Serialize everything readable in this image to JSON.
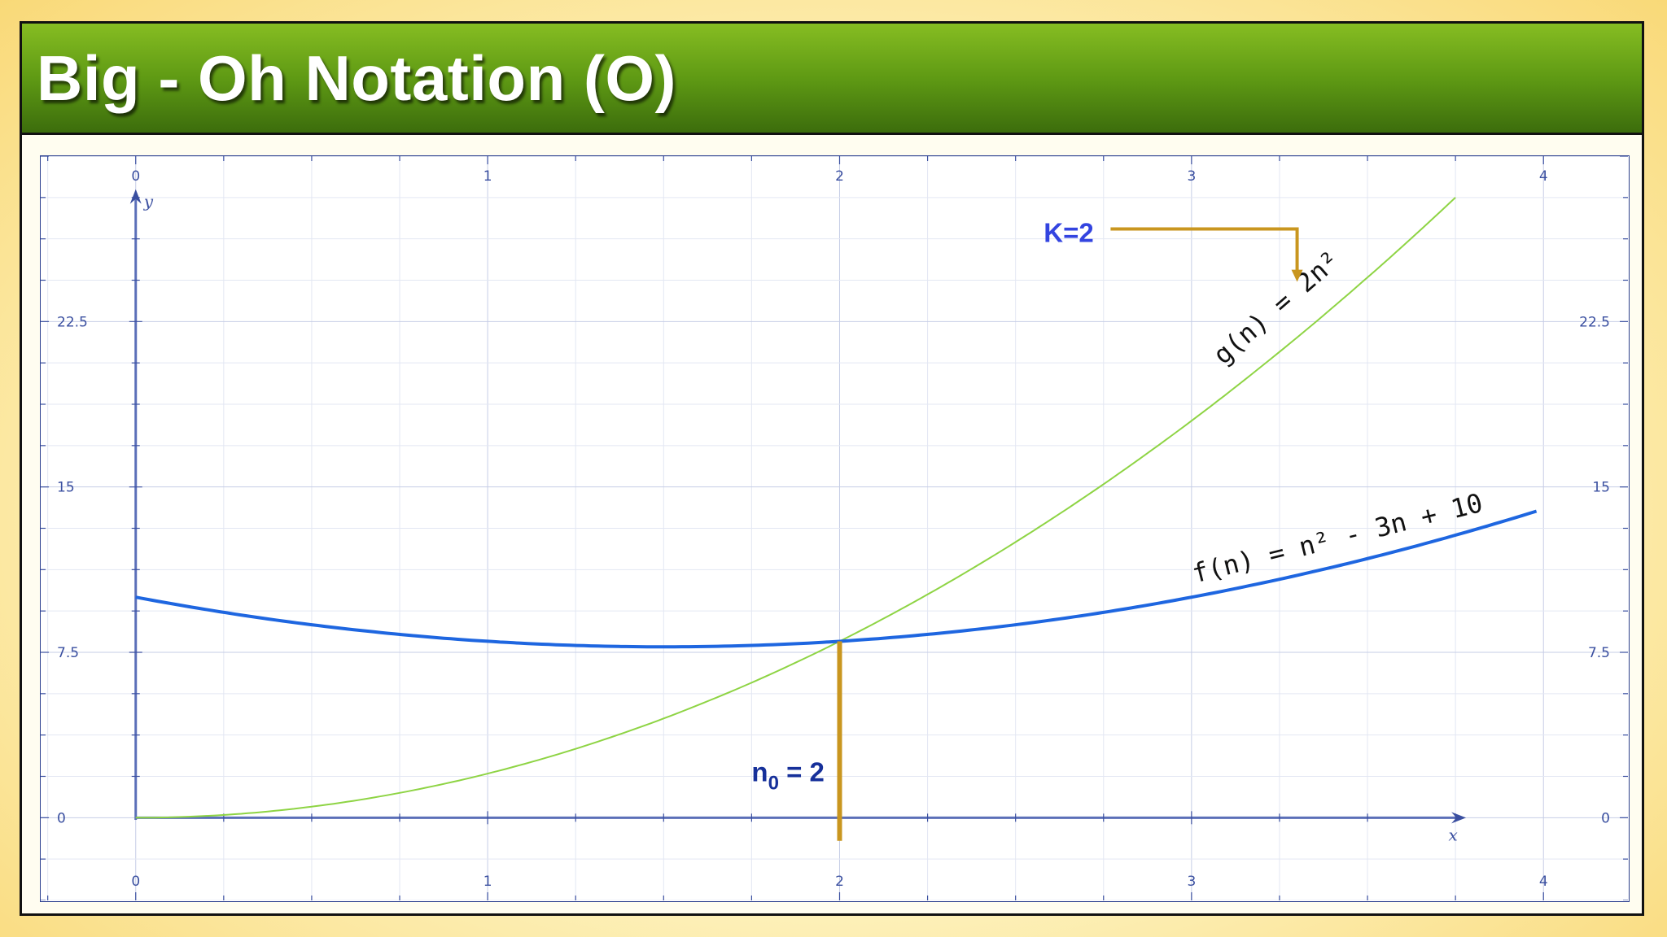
{
  "slide": {
    "title": "Big - Oh Notation (O)"
  },
  "chart_data": {
    "type": "line",
    "title": "",
    "xlabel": "x",
    "ylabel": "y",
    "xlim": [
      -0.27,
      4.24
    ],
    "ylim": [
      -3.75,
      30.0
    ],
    "grid": true,
    "x_ticks": [
      "0",
      "1",
      "2",
      "3",
      "4"
    ],
    "y_ticks": [
      "0",
      "7.5",
      "15",
      "22.5"
    ],
    "series": [
      {
        "label": "f(n) = n² - 3n + 10",
        "color": "#1e66e0",
        "x": [
          0,
          0.25,
          0.5,
          0.75,
          1.0,
          1.25,
          1.5,
          1.75,
          2.0,
          2.25,
          2.5,
          2.75,
          3.0,
          3.25,
          3.5,
          3.75,
          3.98
        ],
        "y": [
          10.0,
          9.31,
          8.75,
          8.31,
          8.0,
          7.81,
          7.75,
          7.81,
          8.0,
          8.31,
          8.75,
          9.31,
          10.0,
          10.81,
          11.75,
          12.81,
          13.9
        ]
      },
      {
        "label": "g(n) = 2n²",
        "color": "#8ed444",
        "x": [
          0,
          0.25,
          0.5,
          0.75,
          1.0,
          1.25,
          1.5,
          1.75,
          2.0,
          2.25,
          2.5,
          2.75,
          3.0,
          3.25,
          3.5,
          3.75
        ],
        "y": [
          0,
          0.125,
          0.5,
          1.125,
          2.0,
          3.125,
          4.5,
          6.125,
          8.0,
          10.125,
          12.5,
          15.125,
          18.0,
          21.125,
          24.5,
          28.125
        ]
      }
    ],
    "annotations": {
      "k_label": "K=2",
      "n0_label_main": "n",
      "n0_label_sub": "0",
      "n0_label_value": " = 2",
      "n0_x": 2,
      "marker_color": "#c9961f",
      "k_color": "#3344e0",
      "n0_color": "#16309a"
    }
  }
}
